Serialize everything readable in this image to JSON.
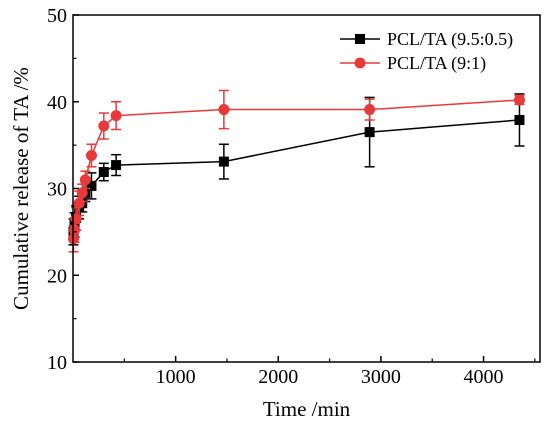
{
  "chart_data": {
    "type": "line",
    "title": "",
    "xlabel": "Time /min",
    "ylabel": "Cumulative release of TA /%",
    "xlim": [
      0,
      4550
    ],
    "ylim": [
      10,
      50
    ],
    "xticks": [
      1000,
      2000,
      3000,
      4000
    ],
    "yticks": [
      10,
      20,
      30,
      40,
      50
    ],
    "grid": false,
    "legend": "top-right",
    "series": [
      {
        "name": "PCL/TA (9.5:0.5)",
        "color": "#000000",
        "marker": "square",
        "x": [
          5,
          15,
          30,
          60,
          90,
          120,
          180,
          300,
          420,
          1470,
          2890,
          4350
        ],
        "y": [
          25.0,
          25.8,
          26.6,
          27.8,
          28.3,
          29.5,
          30.3,
          31.9,
          32.7,
          33.1,
          36.5,
          37.9
        ],
        "err": [
          1.5,
          1.4,
          1.4,
          1.3,
          1.0,
          1.0,
          1.5,
          1.0,
          1.2,
          2.0,
          4.0,
          3.0
        ]
      },
      {
        "name": "PCL/TA (9:1)",
        "color": "#e83a3a",
        "marker": "circle",
        "x": [
          5,
          15,
          30,
          60,
          90,
          120,
          180,
          300,
          420,
          1470,
          2890,
          4350
        ],
        "y": [
          24.2,
          25.2,
          26.5,
          28.3,
          29.5,
          31.0,
          33.8,
          37.2,
          38.4,
          39.1,
          39.1,
          40.2
        ],
        "err": [
          1.5,
          1.4,
          1.3,
          1.4,
          1.0,
          1.0,
          1.3,
          1.5,
          1.6,
          2.2,
          1.2,
          0.5
        ]
      }
    ]
  }
}
